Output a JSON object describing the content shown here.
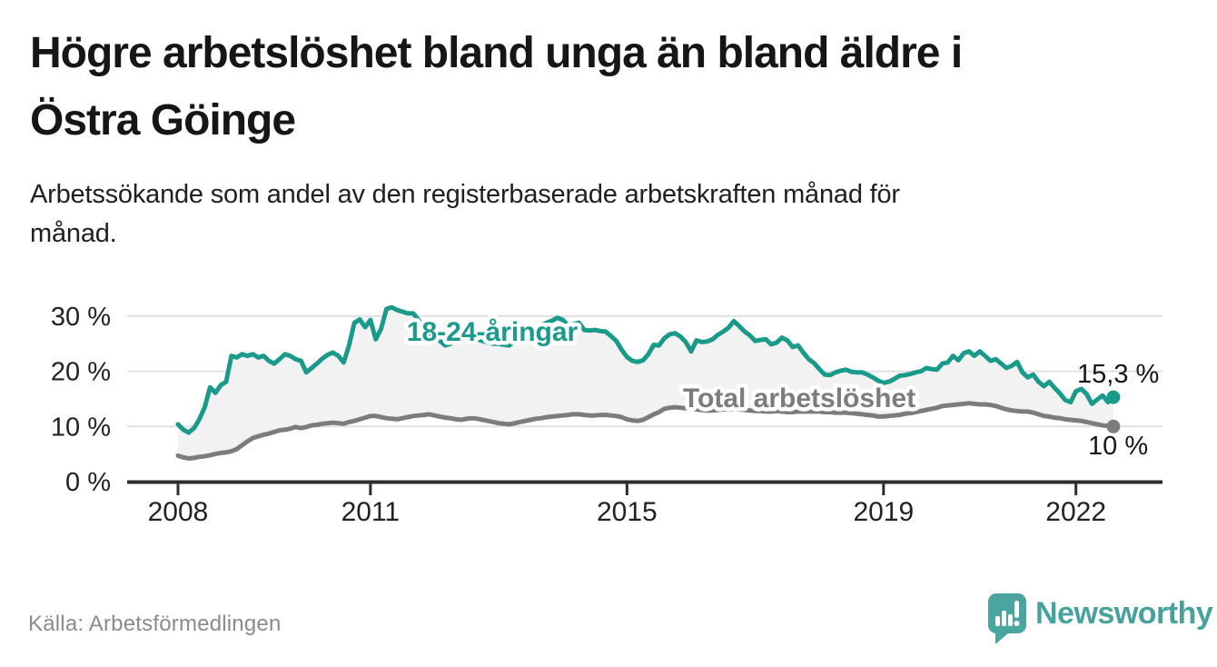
{
  "title": {
    "line1": "Högre arbetslöshet bland unga än bland äldre i",
    "line2": "Östra Göinge"
  },
  "subtitle": {
    "line1": "Arbetssökande som andel av den registerbaserade arbetskraften månad för",
    "line2": "månad."
  },
  "source": "Källa: Arbetsförmedlingen",
  "brand": {
    "name": "Newsworthy",
    "color": "#47a19c"
  },
  "colors": {
    "line_young": "#199a8b",
    "line_total": "#7c7c7c",
    "area_fill": "#f2f2f2",
    "grid": "#e0e0e0",
    "axis": "#2d2d2d",
    "text": "#161616",
    "tick_text": "#222222",
    "muted": "#8b8b8b",
    "halo": "#ffffff"
  },
  "chart_data": {
    "type": "line",
    "unit": "%",
    "frequency": "monthly",
    "x_start": "2008-01",
    "x_end": "2022-08",
    "ylim": [
      0,
      33
    ],
    "grid": "horizontal",
    "y_tick_values": [
      0,
      10,
      20,
      30
    ],
    "y_tick_labels": [
      "0 %",
      "10 %",
      "20 %",
      "30 %"
    ],
    "x_tick_years": [
      2008,
      2011,
      2015,
      2019,
      2022
    ],
    "x_tick_labels": [
      "2008",
      "2011",
      "2015",
      "2019",
      "2022"
    ],
    "area_fill_between_series": true,
    "series": [
      {
        "name": "18-24-åringar",
        "color": "#199a8b",
        "end_label": "15,3 %",
        "end_value": 15.3,
        "values": [
          10.4,
          9.4,
          8.9,
          9.7,
          11.3,
          13.5,
          17.1,
          16.1,
          17.5,
          18.1,
          22.8,
          22.5,
          23.1,
          22.8,
          23.1,
          22.5,
          22.8,
          21.9,
          21.4,
          22.2,
          23.1,
          22.8,
          22.2,
          21.9,
          19.8,
          20.6,
          21.4,
          22.3,
          23.0,
          23.4,
          22.8,
          21.6,
          24.7,
          28.8,
          29.4,
          28.0,
          29.3,
          25.8,
          27.7,
          31.3,
          31.6,
          31.1,
          30.8,
          30.5,
          30.5,
          29.3,
          28.0,
          27.0,
          26.4,
          25.5,
          24.7,
          25.0,
          25.5,
          25.8,
          26.0,
          26.0,
          25.8,
          25.5,
          25.2,
          25.0,
          25.0,
          24.8,
          24.7,
          25.5,
          26.4,
          27.1,
          27.6,
          28.0,
          28.4,
          28.8,
          29.2,
          29.7,
          29.3,
          28.3,
          28.5,
          28.8,
          27.5,
          27.4,
          27.5,
          27.3,
          27.2,
          26.4,
          25.5,
          23.9,
          22.6,
          21.9,
          21.7,
          22.0,
          23.1,
          24.8,
          24.7,
          26.0,
          26.7,
          26.9,
          26.3,
          25.3,
          23.6,
          25.6,
          25.3,
          25.4,
          25.8,
          26.6,
          27.2,
          27.9,
          29.1,
          28.2,
          27.2,
          26.5,
          25.5,
          25.7,
          25.8,
          24.9,
          25.2,
          26.1,
          25.6,
          24.4,
          24.7,
          23.4,
          22.2,
          21.5,
          20.4,
          19.4,
          19.3,
          19.8,
          20.1,
          20.3,
          19.9,
          19.8,
          19.8,
          19.4,
          18.9,
          18.3,
          17.9,
          18.1,
          18.6,
          19.2,
          19.3,
          19.5,
          19.8,
          20.0,
          20.6,
          20.4,
          20.3,
          21.4,
          21.6,
          22.8,
          22.0,
          23.3,
          23.6,
          22.8,
          23.6,
          22.8,
          21.9,
          22.2,
          21.4,
          20.6,
          21.0,
          21.7,
          19.8,
          18.9,
          19.4,
          18.1,
          17.3,
          18.1,
          17.0,
          16.0,
          14.8,
          14.4,
          16.4,
          16.8,
          15.9,
          14.1,
          14.9,
          15.6,
          14.4,
          15.3
        ]
      },
      {
        "name": "Total arbetslöshet",
        "color": "#7c7c7c",
        "end_label": "10 %",
        "end_value": 10.0,
        "values": [
          4.7,
          4.4,
          4.2,
          4.3,
          4.5,
          4.6,
          4.8,
          5.0,
          5.2,
          5.3,
          5.5,
          5.9,
          6.6,
          7.3,
          7.9,
          8.2,
          8.5,
          8.7,
          9.0,
          9.3,
          9.4,
          9.6,
          9.9,
          9.7,
          9.9,
          10.2,
          10.3,
          10.5,
          10.6,
          10.7,
          10.6,
          10.5,
          10.8,
          11.0,
          11.3,
          11.6,
          11.9,
          11.9,
          11.7,
          11.5,
          11.4,
          11.3,
          11.5,
          11.7,
          11.9,
          12.0,
          12.1,
          12.2,
          12.0,
          11.8,
          11.6,
          11.5,
          11.3,
          11.2,
          11.4,
          11.5,
          11.4,
          11.2,
          11.0,
          10.8,
          10.6,
          10.5,
          10.4,
          10.6,
          10.8,
          11.0,
          11.2,
          11.4,
          11.5,
          11.7,
          11.8,
          11.9,
          12.0,
          12.1,
          12.2,
          12.2,
          12.1,
          12.0,
          12.0,
          12.1,
          12.1,
          12.0,
          11.9,
          11.7,
          11.3,
          11.1,
          11.0,
          11.2,
          11.7,
          12.2,
          12.6,
          13.2,
          13.4,
          13.5,
          13.4,
          13.3,
          13.2,
          13.1,
          13.0,
          12.9,
          12.9,
          13.0,
          13.1,
          13.1,
          13.2,
          13.1,
          13.0,
          12.9,
          12.8,
          12.8,
          12.7,
          12.7,
          12.8,
          12.7,
          12.6,
          12.6,
          12.7,
          12.7,
          12.7,
          12.7,
          12.7,
          12.6,
          12.6,
          12.5,
          12.5,
          12.5,
          12.4,
          12.3,
          12.2,
          12.1,
          12.0,
          11.8,
          11.8,
          11.9,
          12.0,
          12.1,
          12.3,
          12.4,
          12.6,
          12.8,
          13.0,
          13.2,
          13.4,
          13.7,
          13.8,
          13.9,
          14.0,
          14.1,
          14.2,
          14.1,
          14.0,
          14.0,
          13.9,
          13.7,
          13.4,
          13.1,
          12.9,
          12.8,
          12.7,
          12.7,
          12.5,
          12.2,
          11.9,
          11.8,
          11.6,
          11.5,
          11.3,
          11.2,
          11.1,
          11.0,
          10.8,
          10.6,
          10.4,
          10.2,
          10.1,
          10.0
        ]
      }
    ]
  }
}
